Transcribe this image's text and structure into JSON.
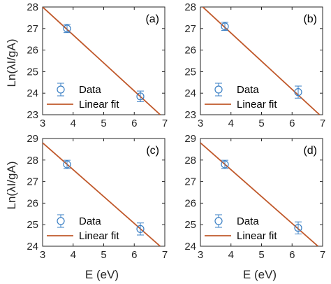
{
  "figure": {
    "ylabel": "Ln(λI/gA)",
    "xlabel": "E (eV)"
  },
  "chart_data": [
    {
      "type": "scatter",
      "panel_label": "(a)",
      "xlim": [
        3,
        7
      ],
      "ylim": [
        23,
        28
      ],
      "xticks": [
        3,
        4,
        5,
        6,
        7
      ],
      "yticks": [
        23,
        24,
        25,
        26,
        27,
        28
      ],
      "grid": false,
      "legend_position": "bottom-left",
      "legend": [
        "Data",
        "Linear fit"
      ],
      "series": [
        {
          "name": "Data",
          "kind": "errorbar",
          "color": "#3a7fc4",
          "points": [
            {
              "x": 3.8,
              "y": 27.0,
              "err": 0.06
            },
            {
              "x": 6.2,
              "y": 23.85,
              "err": 0.12
            }
          ]
        },
        {
          "name": "Linear fit",
          "kind": "line",
          "color": "#c0582a",
          "points": [
            {
              "x": 3.0,
              "y": 28.0
            },
            {
              "x": 6.85,
              "y": 23.0
            }
          ]
        }
      ]
    },
    {
      "type": "scatter",
      "panel_label": "(b)",
      "xlim": [
        3,
        7
      ],
      "ylim": [
        23,
        28
      ],
      "xticks": [
        3,
        4,
        5,
        6,
        7
      ],
      "yticks": [
        23,
        24,
        25,
        26,
        27,
        28
      ],
      "grid": false,
      "legend_position": "bottom-left",
      "legend": [
        "Data",
        "Linear fit"
      ],
      "series": [
        {
          "name": "Data",
          "kind": "errorbar",
          "color": "#3a7fc4",
          "points": [
            {
              "x": 3.8,
              "y": 27.1,
              "err": 0.06
            },
            {
              "x": 6.2,
              "y": 24.05,
              "err": 0.15
            }
          ]
        },
        {
          "name": "Linear fit",
          "kind": "line",
          "color": "#c0582a",
          "points": [
            {
              "x": 3.0,
              "y": 28.1
            },
            {
              "x": 6.9,
              "y": 23.0
            }
          ]
        }
      ]
    },
    {
      "type": "scatter",
      "panel_label": "(c)",
      "xlim": [
        3,
        7
      ],
      "ylim": [
        24,
        29
      ],
      "xticks": [
        3,
        4,
        5,
        6,
        7
      ],
      "yticks": [
        24,
        25,
        26,
        27,
        28,
        29
      ],
      "grid": false,
      "legend_position": "bottom-left",
      "legend": [
        "Data",
        "Linear fit"
      ],
      "series": [
        {
          "name": "Data",
          "kind": "errorbar",
          "color": "#3a7fc4",
          "points": [
            {
              "x": 3.8,
              "y": 27.8,
              "err": 0.06
            },
            {
              "x": 6.2,
              "y": 24.8,
              "err": 0.15
            }
          ]
        },
        {
          "name": "Linear fit",
          "kind": "line",
          "color": "#c0582a",
          "points": [
            {
              "x": 3.0,
              "y": 28.8
            },
            {
              "x": 6.85,
              "y": 24.0
            }
          ]
        }
      ]
    },
    {
      "type": "scatter",
      "panel_label": "(d)",
      "xlim": [
        3,
        7
      ],
      "ylim": [
        24,
        29
      ],
      "xticks": [
        3,
        4,
        5,
        6,
        7
      ],
      "yticks": [
        24,
        25,
        26,
        27,
        28,
        29
      ],
      "grid": false,
      "legend_position": "bottom-left",
      "legend": [
        "Data",
        "Linear fit"
      ],
      "series": [
        {
          "name": "Data",
          "kind": "errorbar",
          "color": "#3a7fc4",
          "points": [
            {
              "x": 3.8,
              "y": 27.8,
              "err": 0.06
            },
            {
              "x": 6.2,
              "y": 24.85,
              "err": 0.15
            }
          ]
        },
        {
          "name": "Linear fit",
          "kind": "line",
          "color": "#c0582a",
          "points": [
            {
              "x": 3.0,
              "y": 28.8
            },
            {
              "x": 6.85,
              "y": 24.0
            }
          ]
        }
      ]
    }
  ]
}
